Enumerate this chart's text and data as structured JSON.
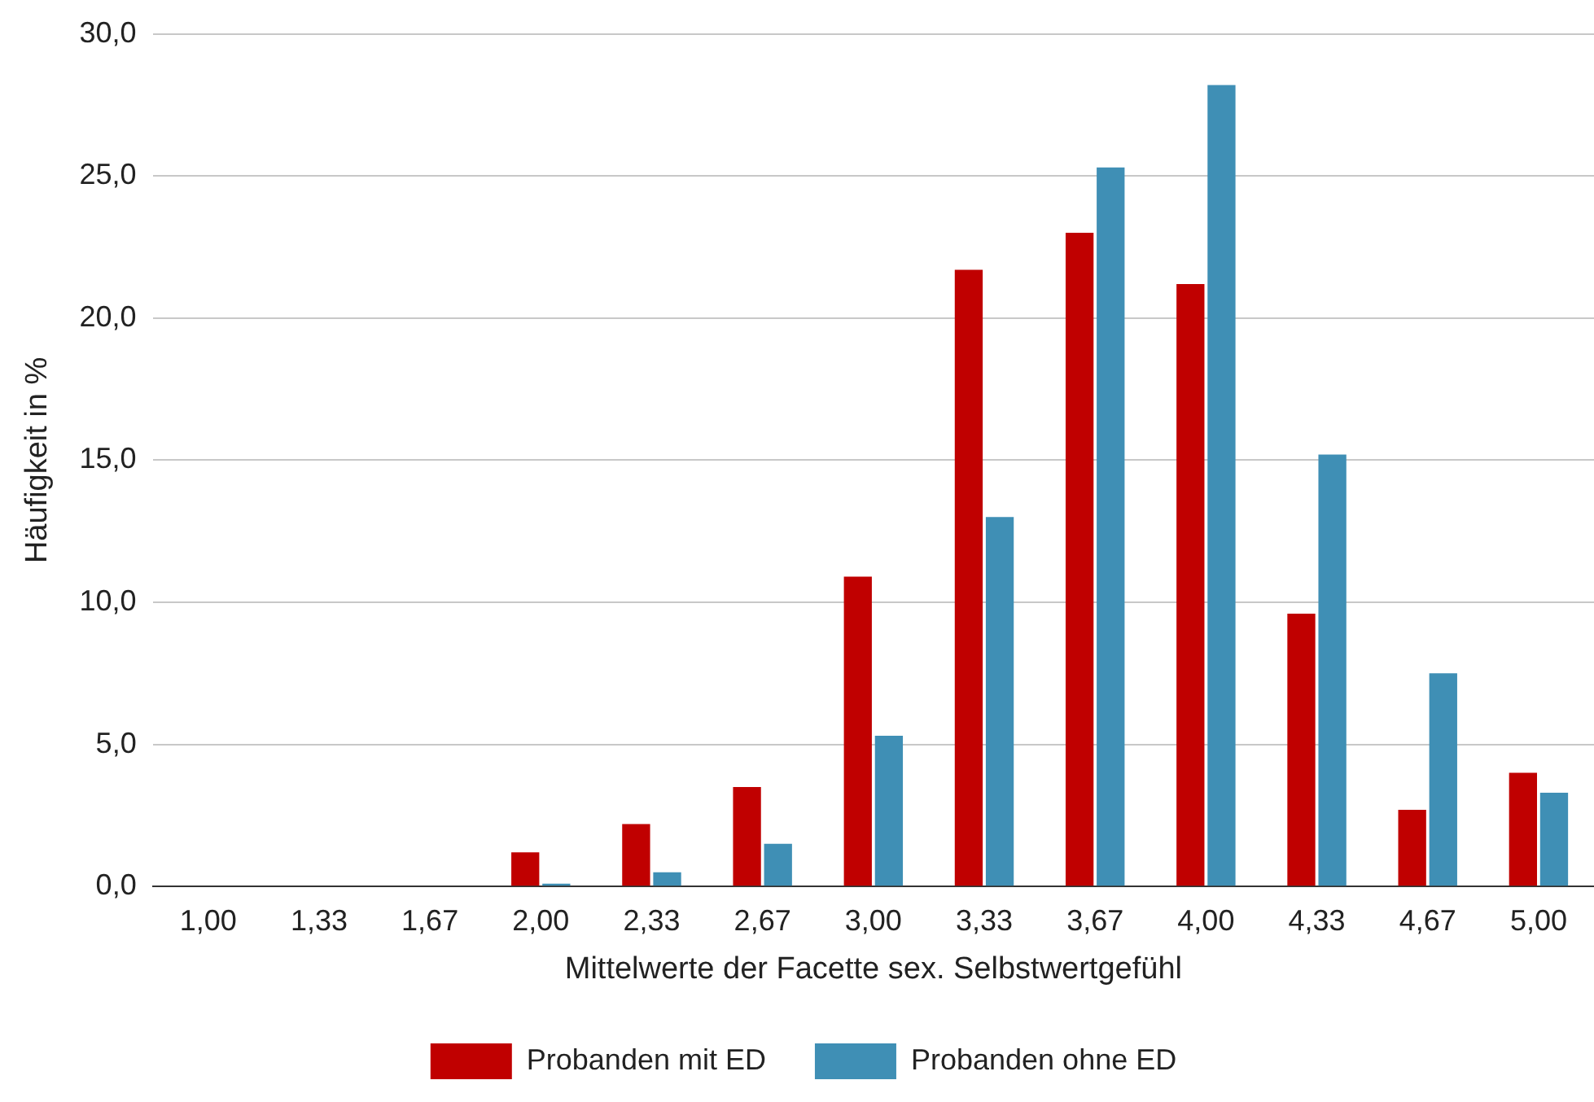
{
  "chart_data": {
    "type": "bar",
    "xlabel": "Mittelwerte der Facette sex. Selbstwertgefühl",
    "ylabel": "Häufigkeit in %",
    "categories": [
      "1,00",
      "1,33",
      "1,67",
      "2,00",
      "2,33",
      "2,67",
      "3,00",
      "3,33",
      "3,67",
      "4,00",
      "4,33",
      "4,67",
      "5,00"
    ],
    "series": [
      {
        "name": "Probanden mit ED",
        "color": "#c00000",
        "values": [
          0,
          0,
          0,
          1.2,
          2.2,
          3.5,
          10.9,
          21.7,
          23.0,
          21.2,
          9.6,
          2.7,
          4.0
        ]
      },
      {
        "name": "Probanden ohne ED",
        "color": "#3f8fb5",
        "values": [
          0,
          0,
          0,
          0.1,
          0.5,
          1.5,
          5.3,
          13.0,
          25.3,
          28.2,
          15.2,
          7.5,
          3.3
        ]
      }
    ],
    "ylim": [
      0,
      30
    ],
    "yticks": [
      {
        "value": 0,
        "label": "0,0"
      },
      {
        "value": 5,
        "label": "5,0"
      },
      {
        "value": 10,
        "label": "10,0"
      },
      {
        "value": 15,
        "label": "15,0"
      },
      {
        "value": 20,
        "label": "20,0"
      },
      {
        "value": 25,
        "label": "25,0"
      },
      {
        "value": 30,
        "label": "30,0"
      }
    ],
    "grid": "y",
    "legend": "bottom"
  }
}
